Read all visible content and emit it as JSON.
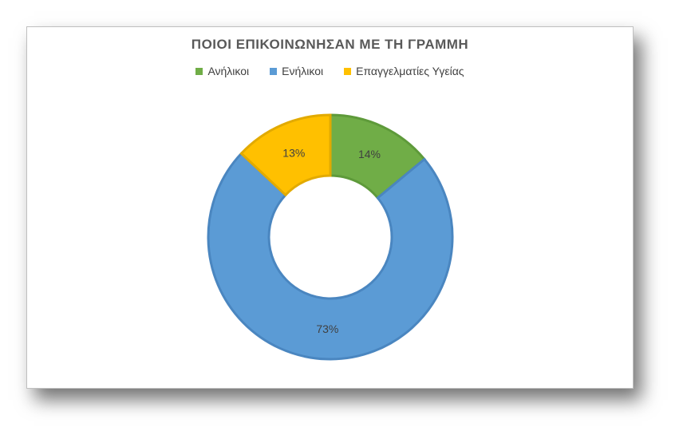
{
  "chart_data": {
    "type": "pie",
    "subtype": "donut",
    "title": "ΠΟΙΟΙ ΕΠΙΚΟΙΝΩΝΗΣΑΝ ΜΕ ΤΗ ΓΡΑΜΜΗ",
    "legend_position": "top",
    "categories": [
      "Ανήλικοι",
      "Ενήλικοι",
      "Επαγγελματίες Υγείας"
    ],
    "values": [
      14,
      73,
      13
    ],
    "data_labels": [
      "14%",
      "73%",
      "13%"
    ],
    "colors": [
      "#70AD47",
      "#5B9BD5",
      "#FFC000"
    ],
    "border_colors": [
      "#5E9A3A",
      "#4A86C0",
      "#E2AA00"
    ]
  }
}
